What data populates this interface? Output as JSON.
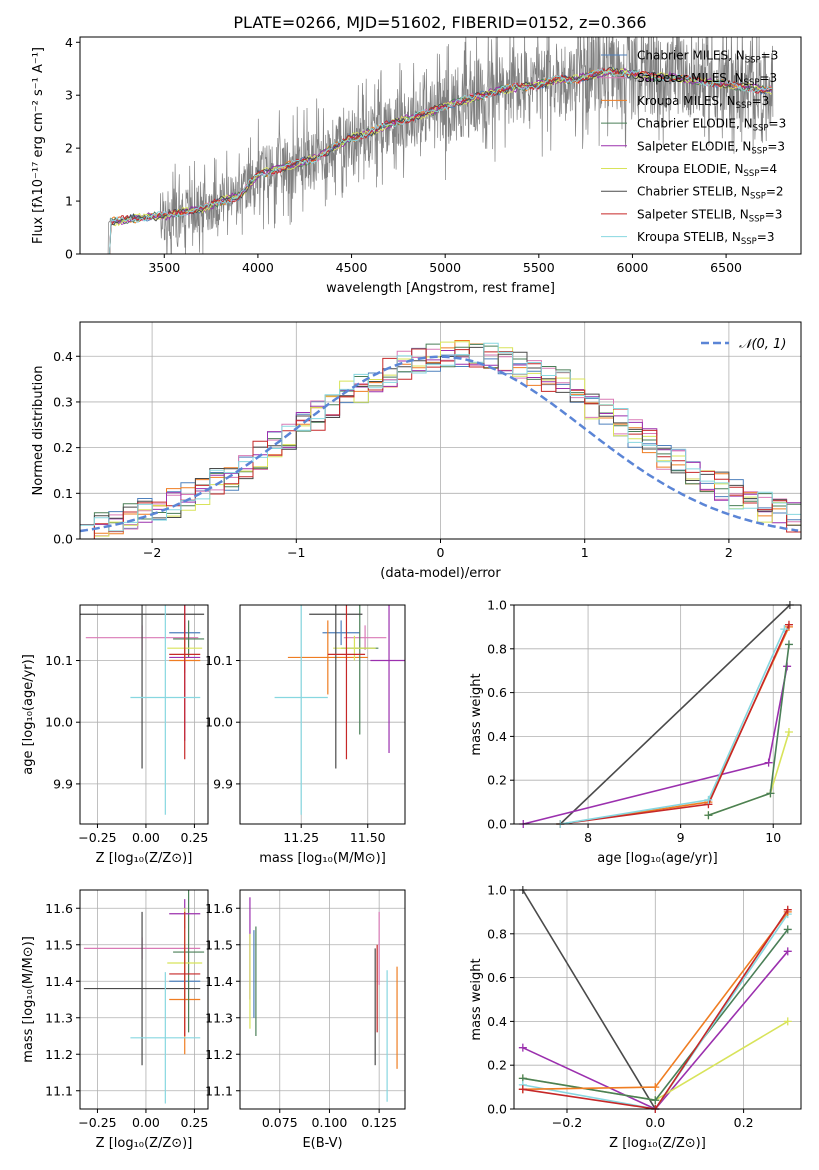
{
  "colors": {
    "grid": "#b0b0b0",
    "axis": "#000000",
    "observed": "#808080",
    "normal_curve": "#5b85d6"
  },
  "chart_data": [
    {
      "id": "spectrum",
      "type": "line",
      "title": "PLATE=0266, MJD=51602, FIBERID=0152, z=0.366",
      "xlabel": "wavelength [Angstrom, rest frame]",
      "ylabel": "Flux [fλ10⁻¹⁷ erg cm⁻² s⁻¹ A⁻¹]",
      "xlim": [
        3050,
        6900
      ],
      "ylim": [
        0,
        4.1
      ],
      "xticks": [
        3500,
        4000,
        4500,
        5000,
        5500,
        6000,
        6500
      ],
      "yticks": [
        0,
        1,
        2,
        3,
        4
      ],
      "grid": false,
      "legend_position": "upper-right",
      "observed_envelope": [
        {
          "x": 3200,
          "y": 0.6
        },
        {
          "x": 3300,
          "y": 0.65
        },
        {
          "x": 3400,
          "y": 0.7
        },
        {
          "x": 3500,
          "y": 0.72
        },
        {
          "x": 3600,
          "y": 0.8
        },
        {
          "x": 3700,
          "y": 0.85
        },
        {
          "x": 3800,
          "y": 1.0
        },
        {
          "x": 3900,
          "y": 1.1
        },
        {
          "x": 4000,
          "y": 1.5
        },
        {
          "x": 4100,
          "y": 1.6
        },
        {
          "x": 4200,
          "y": 1.7
        },
        {
          "x": 4300,
          "y": 1.8
        },
        {
          "x": 4400,
          "y": 2.0
        },
        {
          "x": 4500,
          "y": 2.2
        },
        {
          "x": 4600,
          "y": 2.3
        },
        {
          "x": 4700,
          "y": 2.45
        },
        {
          "x": 4800,
          "y": 2.55
        },
        {
          "x": 4900,
          "y": 2.65
        },
        {
          "x": 5000,
          "y": 2.8
        },
        {
          "x": 5100,
          "y": 2.9
        },
        {
          "x": 5200,
          "y": 3.0
        },
        {
          "x": 5300,
          "y": 3.1
        },
        {
          "x": 5400,
          "y": 3.15
        },
        {
          "x": 5500,
          "y": 3.2
        },
        {
          "x": 5600,
          "y": 3.3
        },
        {
          "x": 5700,
          "y": 3.3
        },
        {
          "x": 5800,
          "y": 3.4
        },
        {
          "x": 5900,
          "y": 3.45
        },
        {
          "x": 6000,
          "y": 3.4
        },
        {
          "x": 6100,
          "y": 3.35
        },
        {
          "x": 6200,
          "y": 3.35
        },
        {
          "x": 6300,
          "y": 3.3
        },
        {
          "x": 6400,
          "y": 3.25
        },
        {
          "x": 6500,
          "y": 3.2
        },
        {
          "x": 6600,
          "y": 3.15
        },
        {
          "x": 6700,
          "y": 3.1
        }
      ],
      "series": [
        {
          "name": "Chabrier MILES, N",
          "sub": "SSP",
          "suffix": "=3",
          "color": "#4f81bd"
        },
        {
          "name": "Salpeter MILES, N",
          "sub": "SSP",
          "suffix": "=3",
          "color": "#d97ab6"
        },
        {
          "name": "Kroupa MILES, N",
          "sub": "SSP",
          "suffix": "=3",
          "color": "#ef7d22"
        },
        {
          "name": "Chabrier ELODIE, N",
          "sub": "SSP",
          "suffix": "=3",
          "color": "#4a7f57"
        },
        {
          "name": "Salpeter ELODIE, N",
          "sub": "SSP",
          "suffix": "=3",
          "color": "#9b30ae"
        },
        {
          "name": "Kroupa ELODIE, N",
          "sub": "SSP",
          "suffix": "=4",
          "color": "#d8e35a"
        },
        {
          "name": "Chabrier STELIB, N",
          "sub": "SSP",
          "suffix": "=2",
          "color": "#4a4a4a"
        },
        {
          "name": "Salpeter STELIB, N",
          "sub": "SSP",
          "suffix": "=3",
          "color": "#c62828"
        },
        {
          "name": "Kroupa STELIB, N",
          "sub": "SSP",
          "suffix": "=3",
          "color": "#87d7e0"
        }
      ]
    },
    {
      "id": "residuals",
      "type": "line",
      "xlabel": "(data-model)/error",
      "ylabel": "Normed distribution",
      "xlim": [
        -2.5,
        2.5
      ],
      "ylim": [
        0,
        0.475
      ],
      "xticks": [
        -2,
        -1,
        0,
        1,
        2
      ],
      "yticks": [
        0.0,
        0.1,
        0.2,
        0.3,
        0.4
      ],
      "grid": true,
      "legend_position": "upper-right",
      "normal_label": "𝒩(0, 1)",
      "histogram_bin_width": 0.1
    },
    {
      "id": "age_vs_Z",
      "type": "scatter",
      "xlabel": "Z [log₁₀(Z/Z⊙)]",
      "ylabel": "age  [log₁₀(age/yr)]",
      "xlim": [
        -0.34,
        0.32
      ],
      "ylim": [
        9.835,
        10.19
      ],
      "xticks": [
        -0.25,
        0.0,
        0.25
      ],
      "yticks": [
        9.9,
        10.0,
        10.1
      ],
      "grid": true,
      "points": [
        {
          "x": 0.2,
          "y": 10.145,
          "xerr": 0.08,
          "yerr": 0.02,
          "color": "#4f81bd"
        },
        {
          "x": -0.02,
          "y": 10.137,
          "xerr": 0.29,
          "yerr": 0.02,
          "color": "#d97ab6"
        },
        {
          "x": 0.2,
          "y": 10.1,
          "xerr": 0.08,
          "yerr": 0.02,
          "color": "#ef7d22"
        },
        {
          "x": 0.22,
          "y": 10.135,
          "xerr": 0.08,
          "yerr": 0.03,
          "color": "#4a7f57"
        },
        {
          "x": 0.2,
          "y": 10.105,
          "xerr": 0.08,
          "yerr": 0.135,
          "color": "#9b30ae"
        },
        {
          "x": 0.2,
          "y": 10.12,
          "xerr": 0.09,
          "yerr": 0.02,
          "color": "#d8e35a"
        },
        {
          "x": -0.02,
          "y": 10.175,
          "xerr": 0.32,
          "yerr": 0.25,
          "color": "#4a4a4a"
        },
        {
          "x": 0.2,
          "y": 10.11,
          "xerr": 0.08,
          "yerr": 0.17,
          "color": "#c62828"
        },
        {
          "x": 0.1,
          "y": 10.04,
          "xerr": 0.18,
          "yerr": 0.19,
          "color": "#87d7e0"
        }
      ]
    },
    {
      "id": "age_vs_mass",
      "type": "scatter",
      "xlabel": "mass [log₁₀(M/M⊙)]",
      "ylabel": "",
      "xlim": [
        11.02,
        11.64
      ],
      "ylim": [
        9.835,
        10.19
      ],
      "xticks": [
        11.25,
        11.5
      ],
      "yticks": [
        9.9,
        10.0,
        10.1
      ],
      "grid": true,
      "points": [
        {
          "x": 11.4,
          "y": 10.145,
          "xerr": 0.07,
          "yerr": 0.02,
          "color": "#4f81bd"
        },
        {
          "x": 11.49,
          "y": 10.137,
          "xerr": 0.08,
          "yerr": 0.02,
          "color": "#d97ab6"
        },
        {
          "x": 11.35,
          "y": 10.105,
          "xerr": 0.15,
          "yerr": 0.06,
          "color": "#ef7d22"
        },
        {
          "x": 11.47,
          "y": 10.12,
          "xerr": 0.07,
          "yerr": 0.14,
          "color": "#4a7f57"
        },
        {
          "x": 11.58,
          "y": 10.1,
          "xerr": 0.07,
          "yerr": 0.15,
          "color": "#9b30ae"
        },
        {
          "x": 11.45,
          "y": 10.12,
          "xerr": 0.08,
          "yerr": 0.02,
          "color": "#d8e35a"
        },
        {
          "x": 11.38,
          "y": 10.175,
          "xerr": 0.1,
          "yerr": 0.25,
          "color": "#4a4a4a"
        },
        {
          "x": 11.42,
          "y": 10.11,
          "xerr": 0.07,
          "yerr": 0.17,
          "color": "#c62828"
        },
        {
          "x": 11.25,
          "y": 10.04,
          "xerr": 0.1,
          "yerr": 0.19,
          "color": "#87d7e0"
        }
      ]
    },
    {
      "id": "weight_vs_age",
      "type": "line",
      "xlabel": "age  [log₁₀(age/yr)]",
      "ylabel": "mass weight",
      "xlim": [
        7.2,
        10.3
      ],
      "ylim": [
        0,
        1
      ],
      "xticks": [
        8,
        9,
        10
      ],
      "yticks": [
        0.0,
        0.2,
        0.4,
        0.6,
        0.8,
        1.0
      ],
      "grid": true,
      "series": [
        {
          "color": "#4a4a4a",
          "x": [
            7.7,
            10.18
          ],
          "y": [
            0.0,
            1.0
          ]
        },
        {
          "color": "#9b30ae",
          "x": [
            7.3,
            9.95,
            10.15
          ],
          "y": [
            0.0,
            0.28,
            0.72
          ]
        },
        {
          "color": "#ef7d22",
          "x": [
            7.7,
            9.3,
            10.17
          ],
          "y": [
            0.0,
            0.1,
            0.9
          ]
        },
        {
          "color": "#c62828",
          "x": [
            7.7,
            9.3,
            10.17
          ],
          "y": [
            0.0,
            0.09,
            0.91
          ]
        },
        {
          "color": "#87d7e0",
          "x": [
            7.7,
            9.3,
            10.12
          ],
          "y": [
            0.0,
            0.11,
            0.89
          ]
        },
        {
          "color": "#d8e35a",
          "x": [
            9.3,
            9.97,
            10.17
          ],
          "y": [
            0.04,
            0.14,
            0.42
          ]
        },
        {
          "color": "#4a7f57",
          "x": [
            9.3,
            9.97,
            10.17
          ],
          "y": [
            0.04,
            0.14,
            0.82
          ]
        }
      ]
    },
    {
      "id": "mass_vs_Z",
      "type": "scatter",
      "xlabel": "Z [log₁₀(Z/Z⊙)]",
      "ylabel": "mass [log₁₀(M/M⊙)]",
      "xlim": [
        -0.34,
        0.32
      ],
      "ylim": [
        11.05,
        11.65
      ],
      "xticks": [
        -0.25,
        0.0,
        0.25
      ],
      "yticks": [
        11.1,
        11.2,
        11.3,
        11.4,
        11.5,
        11.6
      ],
      "grid": true,
      "points": [
        {
          "x": 0.2,
          "y": 11.4,
          "xerr": 0.08,
          "yerr": 0.06,
          "color": "#4f81bd"
        },
        {
          "x": -0.02,
          "y": 11.49,
          "xerr": 0.3,
          "yerr": 0.03,
          "color": "#d97ab6"
        },
        {
          "x": 0.2,
          "y": 11.35,
          "xerr": 0.08,
          "yerr": 0.15,
          "color": "#ef7d22"
        },
        {
          "x": 0.22,
          "y": 11.48,
          "xerr": 0.08,
          "yerr": 0.22,
          "color": "#4a7f57"
        },
        {
          "x": 0.2,
          "y": 11.585,
          "xerr": 0.08,
          "yerr": 0.04,
          "color": "#9b30ae"
        },
        {
          "x": 0.2,
          "y": 11.45,
          "xerr": 0.09,
          "yerr": 0.15,
          "color": "#d8e35a"
        },
        {
          "x": -0.02,
          "y": 11.38,
          "xerr": 0.3,
          "yerr": 0.21,
          "color": "#4a4a4a"
        },
        {
          "x": 0.2,
          "y": 11.42,
          "xerr": 0.08,
          "yerr": 0.17,
          "color": "#c62828"
        },
        {
          "x": 0.1,
          "y": 11.245,
          "xerr": 0.18,
          "yerr": 0.18,
          "color": "#87d7e0"
        }
      ]
    },
    {
      "id": "mass_vs_ebv",
      "type": "scatter",
      "xlabel": "E(B-V)",
      "ylabel": "",
      "xlim": [
        0.055,
        0.138
      ],
      "ylim": [
        11.05,
        11.65
      ],
      "xticks": [
        0.075,
        0.1,
        0.125
      ],
      "tick_labels": [
        "0.075",
        "0.100",
        "0.125"
      ],
      "yticks": [
        11.1,
        11.2,
        11.3,
        11.4,
        11.5,
        11.6
      ],
      "grid": true,
      "points": [
        {
          "x": 0.062,
          "y": 11.42,
          "yerr": 0.12,
          "color": "#4f81bd"
        },
        {
          "x": 0.125,
          "y": 11.49,
          "yerr": 0.1,
          "color": "#d97ab6"
        },
        {
          "x": 0.134,
          "y": 11.3,
          "yerr": 0.14,
          "color": "#ef7d22"
        },
        {
          "x": 0.063,
          "y": 11.4,
          "yerr": 0.15,
          "color": "#4a7f57"
        },
        {
          "x": 0.06,
          "y": 11.49,
          "yerr": 0.14,
          "color": "#9b30ae"
        },
        {
          "x": 0.06,
          "y": 11.4,
          "yerr": 0.13,
          "color": "#d8e35a"
        },
        {
          "x": 0.123,
          "y": 11.33,
          "yerr": 0.16,
          "color": "#4a4a4a"
        },
        {
          "x": 0.124,
          "y": 11.38,
          "yerr": 0.12,
          "color": "#c62828"
        },
        {
          "x": 0.129,
          "y": 11.25,
          "yerr": 0.18,
          "color": "#87d7e0"
        }
      ]
    },
    {
      "id": "weight_vs_Z",
      "type": "line",
      "xlabel": "Z [log₁₀(Z/Z⊙)]",
      "ylabel": "mass weight",
      "xlim": [
        -0.32,
        0.33
      ],
      "ylim": [
        0,
        1
      ],
      "xticks": [
        -0.2,
        0.0,
        0.2
      ],
      "yticks": [
        0.0,
        0.2,
        0.4,
        0.6,
        0.8,
        1.0
      ],
      "grid": true,
      "series": [
        {
          "color": "#4a4a4a",
          "x": [
            -0.3,
            0.0
          ],
          "y": [
            1.0,
            0.0
          ]
        },
        {
          "color": "#9b30ae",
          "x": [
            -0.3,
            0.0,
            0.3
          ],
          "y": [
            0.28,
            0.0,
            0.72
          ]
        },
        {
          "color": "#d8e35a",
          "x": [
            -0.3,
            0.0,
            0.3
          ],
          "y": [
            0.14,
            0.04,
            0.4
          ]
        },
        {
          "color": "#4a7f57",
          "x": [
            -0.3,
            0.0,
            0.3
          ],
          "y": [
            0.14,
            0.04,
            0.82
          ]
        },
        {
          "color": "#87d7e0",
          "x": [
            -0.3,
            0.0,
            0.3
          ],
          "y": [
            0.11,
            0.0,
            0.89
          ]
        },
        {
          "color": "#ef7d22",
          "x": [
            -0.3,
            0.0,
            0.3
          ],
          "y": [
            0.09,
            0.1,
            0.9
          ]
        },
        {
          "color": "#c62828",
          "x": [
            -0.3,
            0.0,
            0.3
          ],
          "y": [
            0.09,
            0.0,
            0.91
          ]
        }
      ]
    }
  ]
}
